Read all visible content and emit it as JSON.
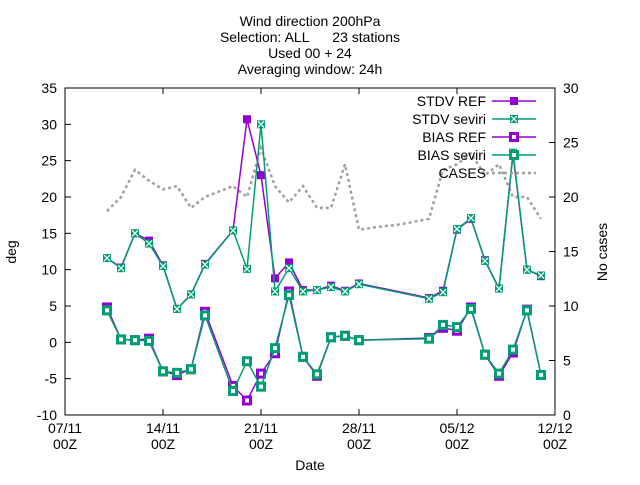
{
  "chart_data": {
    "type": "line",
    "title_lines": [
      "Wind direction 200hPa",
      "Selection: ALL      23 stations",
      "Used 00 + 24",
      "Averaging window: 24h"
    ],
    "xlabel": "Date",
    "ylabel": "deg",
    "y2label": "No cases",
    "xlim": [
      "2023-11-07",
      "2023-12-12"
    ],
    "ylim": [
      -10,
      35
    ],
    "y2lim": [
      0,
      30
    ],
    "x_ticks": [
      {
        "date": "2023-11-07",
        "label1": "07/11",
        "label2": "00Z"
      },
      {
        "date": "2023-11-14",
        "label1": "14/11",
        "label2": "00Z"
      },
      {
        "date": "2023-11-21",
        "label1": "21/11",
        "label2": "00Z"
      },
      {
        "date": "2023-11-28",
        "label1": "28/11",
        "label2": "00Z"
      },
      {
        "date": "2023-12-05",
        "label1": "05/12",
        "label2": "00Z"
      },
      {
        "date": "2023-12-12",
        "label1": "12/12",
        "label2": "00Z"
      }
    ],
    "y_ticks": [
      -10,
      -5,
      0,
      5,
      10,
      15,
      20,
      25,
      30,
      35
    ],
    "y2_ticks": [
      0,
      5,
      10,
      15,
      20,
      25,
      30
    ],
    "grid": false,
    "legend_position": "top-right",
    "series": [
      {
        "name": "STDV REF",
        "color": "#9400d3",
        "marker": "filled-square",
        "axis": "y1",
        "points": [
          [
            "2023-11-10",
            11.6
          ],
          [
            "2023-11-11",
            10.3
          ],
          [
            "2023-11-12",
            15.0
          ],
          [
            "2023-11-13",
            14.0
          ],
          [
            "2023-11-14",
            10.6
          ],
          [
            "2023-11-15",
            4.6
          ],
          [
            "2023-11-16",
            6.6
          ],
          [
            "2023-11-17",
            10.8
          ],
          [
            "2023-11-19",
            15.4
          ],
          [
            "2023-11-20",
            30.7
          ],
          [
            "2023-11-21",
            23.0
          ],
          [
            "2023-11-22",
            8.8
          ],
          [
            "2023-11-23",
            11.0
          ],
          [
            "2023-11-24",
            7.2
          ],
          [
            "2023-11-25",
            7.2
          ],
          [
            "2023-11-26",
            7.8
          ],
          [
            "2023-11-27",
            7.1
          ],
          [
            "2023-11-28",
            8.1
          ],
          [
            "2023-12-03",
            6.1
          ],
          [
            "2023-12-04",
            7.1
          ],
          [
            "2023-12-05",
            15.5
          ],
          [
            "2023-12-06",
            17.0
          ],
          [
            "2023-12-07",
            11.3
          ],
          [
            "2023-12-08",
            7.4
          ],
          [
            "2023-12-09",
            25.9
          ],
          [
            "2023-12-10",
            10.0
          ],
          [
            "2023-12-11",
            9.1
          ]
        ]
      },
      {
        "name": "STDV seviri",
        "color": "#009e73",
        "marker": "x-square",
        "axis": "y1",
        "points": [
          [
            "2023-11-10",
            11.6
          ],
          [
            "2023-11-11",
            10.2
          ],
          [
            "2023-11-12",
            15.0
          ],
          [
            "2023-11-13",
            13.6
          ],
          [
            "2023-11-14",
            10.5
          ],
          [
            "2023-11-15",
            4.6
          ],
          [
            "2023-11-16",
            6.6
          ],
          [
            "2023-11-17",
            10.7
          ],
          [
            "2023-11-19",
            15.4
          ],
          [
            "2023-11-20",
            10.1
          ],
          [
            "2023-11-21",
            30.0
          ],
          [
            "2023-11-22",
            7.0
          ],
          [
            "2023-11-23",
            10.2
          ],
          [
            "2023-11-24",
            7.0
          ],
          [
            "2023-11-25",
            7.2
          ],
          [
            "2023-11-26",
            7.6
          ],
          [
            "2023-11-27",
            7.0
          ],
          [
            "2023-11-28",
            8.0
          ],
          [
            "2023-12-03",
            6.0
          ],
          [
            "2023-12-04",
            6.9
          ],
          [
            "2023-12-05",
            15.6
          ],
          [
            "2023-12-06",
            17.1
          ],
          [
            "2023-12-07",
            11.2
          ],
          [
            "2023-12-08",
            7.4
          ],
          [
            "2023-12-09",
            26.1
          ],
          [
            "2023-12-10",
            10.0
          ],
          [
            "2023-12-11",
            9.2
          ]
        ]
      },
      {
        "name": "BIAS REF",
        "color": "#9400d3",
        "marker": "open-square",
        "axis": "y1",
        "points": [
          [
            "2023-11-10",
            4.8
          ],
          [
            "2023-11-11",
            0.4
          ],
          [
            "2023-11-12",
            0.3
          ],
          [
            "2023-11-13",
            0.5
          ],
          [
            "2023-11-14",
            -4.0
          ],
          [
            "2023-11-15",
            -4.5
          ],
          [
            "2023-11-16",
            -3.7
          ],
          [
            "2023-11-17",
            4.2
          ],
          [
            "2023-11-19",
            -6.0
          ],
          [
            "2023-11-20",
            -8.0
          ],
          [
            "2023-11-21",
            -4.3
          ],
          [
            "2023-11-22",
            -1.5
          ],
          [
            "2023-11-23",
            7.0
          ],
          [
            "2023-11-24",
            -2.0
          ],
          [
            "2023-11-25",
            -4.6
          ],
          [
            "2023-11-26",
            0.7
          ],
          [
            "2023-11-27",
            0.9
          ],
          [
            "2023-11-28",
            0.3
          ],
          [
            "2023-12-03",
            0.6
          ],
          [
            "2023-12-04",
            2.0
          ],
          [
            "2023-12-05",
            1.6
          ],
          [
            "2023-12-06",
            4.8
          ],
          [
            "2023-12-07",
            -1.7
          ],
          [
            "2023-12-08",
            -4.6
          ],
          [
            "2023-12-09",
            -1.4
          ],
          [
            "2023-12-10",
            4.5
          ],
          [
            "2023-12-11",
            -4.5
          ]
        ]
      },
      {
        "name": "BIAS seviri",
        "color": "#009e73",
        "marker": "open-square",
        "axis": "y1",
        "points": [
          [
            "2023-11-10",
            4.4
          ],
          [
            "2023-11-11",
            0.4
          ],
          [
            "2023-11-12",
            0.3
          ],
          [
            "2023-11-13",
            0.2
          ],
          [
            "2023-11-14",
            -4.0
          ],
          [
            "2023-11-15",
            -4.2
          ],
          [
            "2023-11-16",
            -3.7
          ],
          [
            "2023-11-17",
            3.7
          ],
          [
            "2023-11-19",
            -6.7
          ],
          [
            "2023-11-20",
            -2.6
          ],
          [
            "2023-11-21",
            -6.1
          ],
          [
            "2023-11-22",
            -0.8
          ],
          [
            "2023-11-23",
            6.5
          ],
          [
            "2023-11-24",
            -2.0
          ],
          [
            "2023-11-25",
            -4.4
          ],
          [
            "2023-11-26",
            0.7
          ],
          [
            "2023-11-27",
            0.9
          ],
          [
            "2023-11-28",
            0.3
          ],
          [
            "2023-12-03",
            0.5
          ],
          [
            "2023-12-04",
            2.4
          ],
          [
            "2023-12-05",
            2.1
          ],
          [
            "2023-12-06",
            4.6
          ],
          [
            "2023-12-07",
            -1.7
          ],
          [
            "2023-12-08",
            -4.3
          ],
          [
            "2023-12-09",
            -1.0
          ],
          [
            "2023-12-10",
            4.4
          ],
          [
            "2023-12-11",
            -4.5
          ]
        ]
      },
      {
        "name": "CASES",
        "color": "#a0a0a0",
        "marker": "none",
        "dash": true,
        "axis": "y2",
        "points": [
          [
            "2023-11-10",
            18.7
          ],
          [
            "2023-11-11",
            20.0
          ],
          [
            "2023-11-12",
            22.5
          ],
          [
            "2023-11-13",
            21.5
          ],
          [
            "2023-11-14",
            20.7
          ],
          [
            "2023-11-15",
            21.0
          ],
          [
            "2023-11-16",
            19.0
          ],
          [
            "2023-11-17",
            20.0
          ],
          [
            "2023-11-18",
            20.5
          ],
          [
            "2023-11-19",
            21.0
          ],
          [
            "2023-11-20",
            20.0
          ],
          [
            "2023-11-21",
            24.5
          ],
          [
            "2023-11-22",
            21.0
          ],
          [
            "2023-11-23",
            19.5
          ],
          [
            "2023-11-24",
            21.0
          ],
          [
            "2023-11-25",
            19.0
          ],
          [
            "2023-11-26",
            19.0
          ],
          [
            "2023-11-27",
            23.0
          ],
          [
            "2023-11-28",
            17.0
          ],
          [
            "2023-11-29",
            17.2
          ],
          [
            "2023-12-01",
            17.5
          ],
          [
            "2023-12-03",
            18.0
          ],
          [
            "2023-12-04",
            22.5
          ],
          [
            "2023-12-05",
            23.0
          ],
          [
            "2023-12-06",
            24.0
          ],
          [
            "2023-12-07",
            22.0
          ],
          [
            "2023-12-08",
            23.0
          ],
          [
            "2023-12-09",
            20.0
          ],
          [
            "2023-12-10",
            20.0
          ],
          [
            "2023-12-11",
            18.0
          ]
        ]
      }
    ]
  }
}
